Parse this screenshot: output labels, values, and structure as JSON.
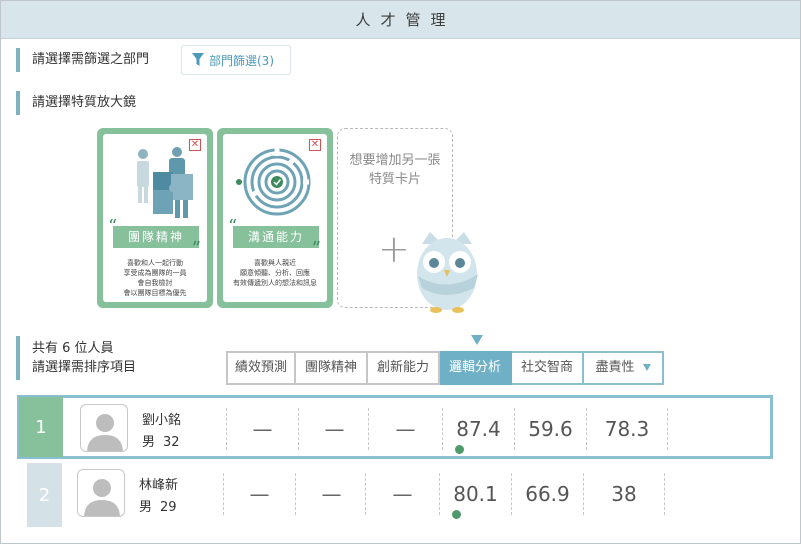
{
  "app": {
    "title": "人才管理"
  },
  "department": {
    "label": "請選擇需篩選之部門",
    "filter_button": "部門篩選(3)"
  },
  "traits": {
    "label": "請選擇特質放大鏡",
    "cards": [
      {
        "name": "團隊精神",
        "description": [
          "喜歡和人一起行動",
          "享受成為團隊的一員",
          "會自我檢討",
          "會以團隊目標為優先"
        ]
      },
      {
        "name": "溝通能力",
        "description": [
          "喜歡與人親近",
          "願意傾聽、分析、回應",
          "有效傳遞別人的想法和訊息"
        ]
      }
    ],
    "add_card_text": "想要增加另一張特質卡片"
  },
  "staff": {
    "count_label": "共有 6 位人員",
    "sort_label": "請選擇需排序項目"
  },
  "sort_tabs": [
    "績效預測",
    "團隊精神",
    "創新能力",
    "邏輯分析",
    "社交智商",
    "盡責性"
  ],
  "sort_active": "邏輯分析",
  "people": [
    {
      "rank": "1",
      "name": "劉小銘",
      "gender": "男",
      "age": "32",
      "values": [
        "—",
        "—",
        "—",
        "87.4",
        "59.6",
        "78.3"
      ]
    },
    {
      "rank": "2",
      "name": "林峰新",
      "gender": "男",
      "age": "29",
      "values": [
        "—",
        "—",
        "—",
        "80.1",
        "66.9",
        "38"
      ]
    }
  ],
  "colors": {
    "accent": "#6fb0c6",
    "green": "#86c19b",
    "title_bg": "#d8e5ea",
    "close": "#d25353"
  }
}
